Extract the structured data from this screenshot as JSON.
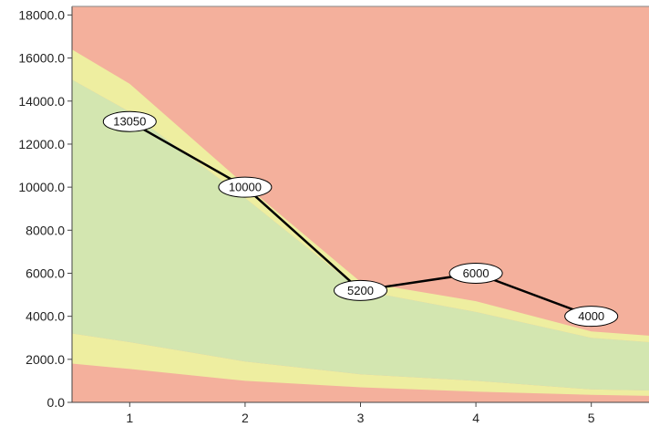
{
  "chart_data": {
    "type": "line",
    "title": "",
    "xlabel": "",
    "ylabel": "",
    "x": [
      1,
      2,
      3,
      4,
      5
    ],
    "xlim": [
      0.5,
      5.5
    ],
    "ylim": [
      0,
      18400
    ],
    "y_ticks": [
      0,
      2000,
      4000,
      6000,
      8000,
      10000,
      12000,
      14000,
      16000,
      18000
    ],
    "y_tick_labels": [
      "0.0",
      "2000.0",
      "4000.0",
      "6000.0",
      "8000.0",
      "10000.0",
      "12000.0",
      "14000.0",
      "16000.0",
      "18000.0"
    ],
    "x_tick_labels": [
      "1",
      "2",
      "3",
      "4",
      "5"
    ],
    "grid": false,
    "series": [
      {
        "values": [
          13050,
          10000,
          5200,
          6000,
          4000
        ],
        "labels": [
          "13050",
          "10000",
          "5200",
          "6000",
          "4000"
        ],
        "color": "#000000"
      }
    ],
    "bands": {
      "x": [
        0.5,
        1,
        2,
        3,
        4,
        5,
        5.5
      ],
      "background_color": "#F4B09C",
      "layers": [
        {
          "color": "#F4B09C",
          "upper": [
            1800,
            1550,
            1000,
            700,
            500,
            350,
            300
          ]
        },
        {
          "color": "#EEEEA0",
          "lower": [
            1800,
            1550,
            1000,
            700,
            500,
            350,
            300
          ],
          "upper": [
            3200,
            2800,
            1900,
            1300,
            1000,
            600,
            550
          ]
        },
        {
          "color": "#D3E6B0",
          "lower": [
            3200,
            2800,
            1900,
            1300,
            1000,
            600,
            550
          ],
          "upper": [
            15000,
            13500,
            9500,
            5200,
            4200,
            3000,
            2800
          ]
        },
        {
          "color": "#EEEEA0",
          "lower": [
            15000,
            13500,
            9500,
            5200,
            4200,
            3000,
            2800
          ],
          "upper": [
            16400,
            14800,
            10100,
            5600,
            4700,
            3300,
            3100
          ]
        }
      ]
    }
  }
}
